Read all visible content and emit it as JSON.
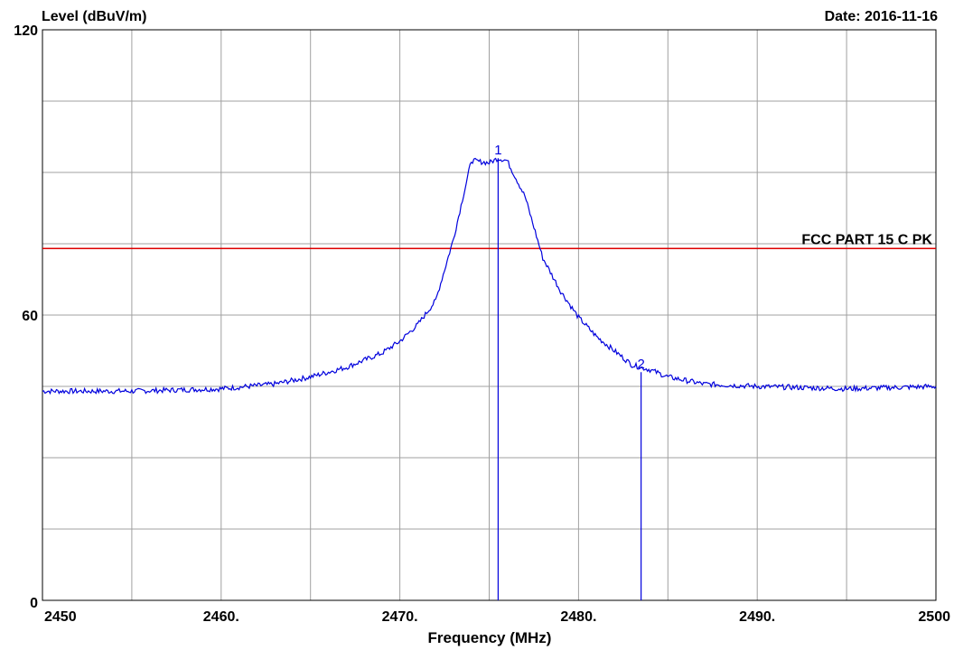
{
  "chart_data": {
    "type": "line",
    "ylabel": "Level (dBuV/m)",
    "xlabel": "Frequency (MHz)",
    "date_text": "Date: 2016-11-16",
    "xlim": [
      2450,
      2500
    ],
    "ylim": [
      0,
      120
    ],
    "grid": true,
    "x_ticks": [
      {
        "value": 2450,
        "label": "2450"
      },
      {
        "value": 2460,
        "label": "2460."
      },
      {
        "value": 2470,
        "label": "2470."
      },
      {
        "value": 2480,
        "label": "2480."
      },
      {
        "value": 2490,
        "label": "2490."
      },
      {
        "value": 2500,
        "label": "2500"
      }
    ],
    "y_ticks": [
      {
        "value": 0,
        "label": "0"
      },
      {
        "value": 60,
        "label": "60"
      },
      {
        "value": 120,
        "label": "120"
      }
    ],
    "limit_line": {
      "label": "FCC PART 15 C PK",
      "value": 74,
      "color": "#dd0000"
    },
    "markers": [
      {
        "label": "1",
        "x": 2475.5,
        "y": 93
      },
      {
        "label": "2",
        "x": 2483.5,
        "y": 48
      }
    ],
    "series": [
      {
        "color": "#0000dd",
        "x": [
          2450,
          2455,
          2460,
          2463,
          2465,
          2467,
          2469,
          2470,
          2471,
          2472,
          2473,
          2474,
          2475,
          2475.5,
          2476,
          2477,
          2478,
          2479,
          2480,
          2481,
          2482,
          2483,
          2484,
          2485,
          2487,
          2490,
          2495,
          2500
        ],
        "y": [
          44,
          44,
          44.5,
          45.5,
          47,
          49,
          52,
          54.5,
          58,
          63,
          76,
          92.5,
          92,
          93,
          92.5,
          85,
          72,
          65,
          59.5,
          55.5,
          52.5,
          49.5,
          48.5,
          47,
          45.5,
          45,
          44.5,
          45
        ]
      }
    ]
  }
}
